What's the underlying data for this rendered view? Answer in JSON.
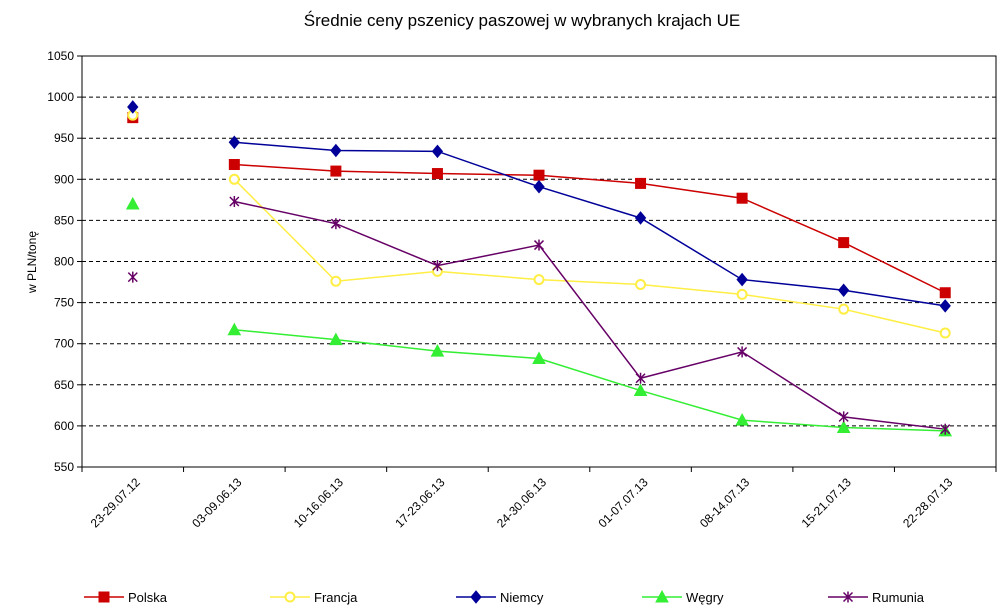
{
  "chart_data": {
    "type": "line",
    "title": "Średnie ceny pszenicy paszowej w wybranych krajach UE",
    "xlabel": "",
    "ylabel": "w PLN/tonę",
    "ylim": [
      550,
      1050
    ],
    "yticks": [
      550,
      600,
      650,
      700,
      750,
      800,
      850,
      900,
      950,
      1000,
      1050
    ],
    "grid": "horizontal dashed",
    "legend_position": "bottom",
    "categories": [
      "23-29.07.12",
      "03-09.06.13",
      "10-16.06.13",
      "17-23.06.13",
      "24-30.06.13",
      "01-07.07.13",
      "08-14.07.13",
      "15-21.07.13",
      "22-28.07.13"
    ],
    "series": [
      {
        "name": "Polska",
        "color": "#cc0000",
        "marker": "square",
        "values": [
          975,
          918,
          910,
          907,
          905,
          895,
          877,
          823,
          762
        ]
      },
      {
        "name": "Francja",
        "color": "#ffee44",
        "marker": "circle",
        "values": [
          978,
          900,
          776,
          788,
          778,
          772,
          760,
          742,
          713
        ]
      },
      {
        "name": "Niemcy",
        "color": "#000099",
        "marker": "diamond",
        "values": [
          988,
          945,
          935,
          934,
          891,
          853,
          778,
          765,
          746
        ]
      },
      {
        "name": "Węgry",
        "color": "#33ee33",
        "marker": "triangle",
        "values": [
          870,
          717,
          705,
          691,
          682,
          643,
          607,
          598,
          594
        ]
      },
      {
        "name": "Rumunia",
        "color": "#660066",
        "marker": "asterisk",
        "values": [
          781,
          873,
          846,
          795,
          820,
          658,
          690,
          611,
          596
        ]
      }
    ]
  }
}
